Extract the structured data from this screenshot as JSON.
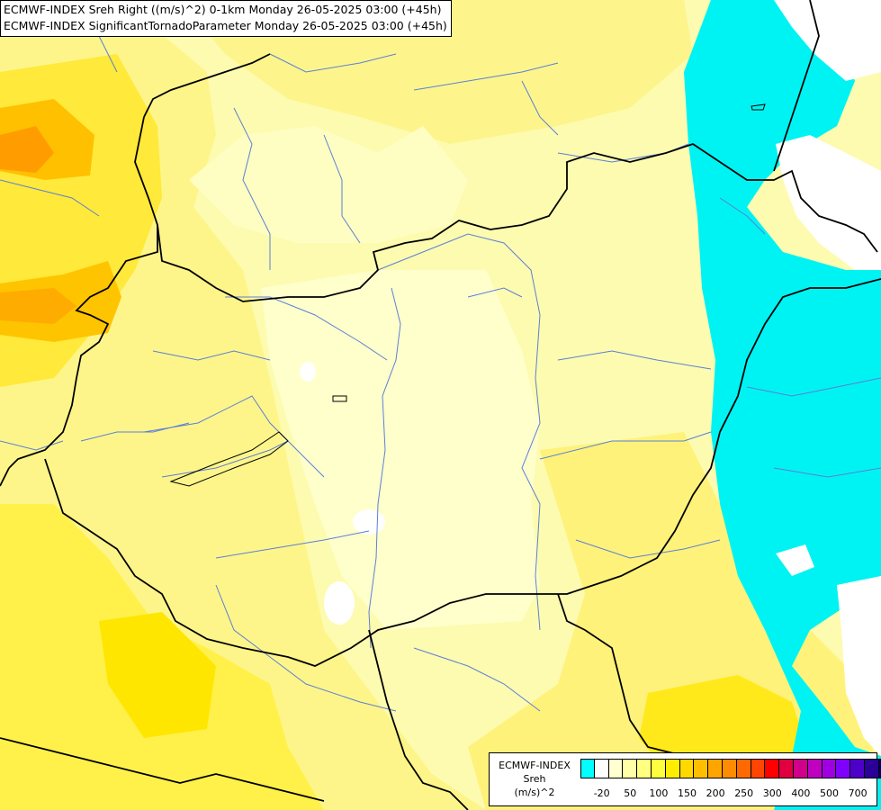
{
  "map": {
    "title_lines": [
      "ECMWF-INDEX Sreh Right ((m/s)^2) 0-1km Monday 26-05-2025 03:00 (+45h)",
      "ECMWF-INDEX SignificantTornadoParameter Monday 26-05-2025 03:00 (+45h)"
    ]
  },
  "legend": {
    "line1": "ECMWF-INDEX",
    "line2": "Sreh",
    "line3": "(m/s)^2",
    "colors": [
      "#00ffff",
      "#ffffff",
      "#ffffd0",
      "#ffffa8",
      "#ffff80",
      "#ffff40",
      "#ffee00",
      "#ffd800",
      "#ffbf00",
      "#ffa500",
      "#ff8c00",
      "#ff6a00",
      "#ff4500",
      "#ff0000",
      "#e00040",
      "#d0008a",
      "#c000c0",
      "#a000e0",
      "#8000ff",
      "#4d00c8",
      "#2a0096",
      "#000070"
    ],
    "ticks": [
      {
        "label": "-20",
        "at": 1
      },
      {
        "label": "50",
        "at": 3
      },
      {
        "label": "100",
        "at": 5
      },
      {
        "label": "150",
        "at": 7
      },
      {
        "label": "200",
        "at": 9
      },
      {
        "label": "250",
        "at": 11
      },
      {
        "label": "300",
        "at": 13
      },
      {
        "label": "400",
        "at": 15
      },
      {
        "label": "500",
        "at": 17
      },
      {
        "label": "700",
        "at": 19
      }
    ]
  }
}
